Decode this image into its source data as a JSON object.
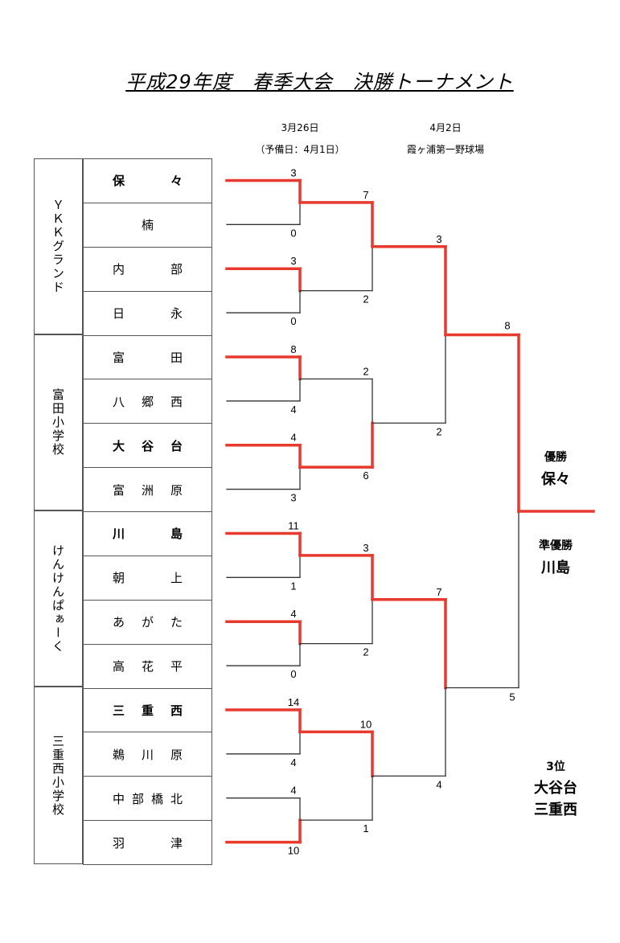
{
  "title": "平成29年度　春季大会　決勝トーナメント",
  "round1_header": {
    "date": "3月26日",
    "note": "（予備日：4月1日）"
  },
  "round2_header": {
    "date": "4月2日",
    "venue": "霞ヶ浦第一野球場"
  },
  "venues": [
    {
      "name": "ＹＫＫグランド"
    },
    {
      "name": "富田小学校"
    },
    {
      "name": "けんけんぱぁーく"
    },
    {
      "name": "三重西小学校"
    }
  ],
  "teams": [
    {
      "chars": [
        "保",
        "々"
      ],
      "bold": true,
      "align": "spread"
    },
    {
      "chars": [
        "楠"
      ],
      "bold": false,
      "align": "center"
    },
    {
      "chars": [
        "内",
        "部"
      ],
      "bold": false,
      "align": "spread"
    },
    {
      "chars": [
        "日",
        "永"
      ],
      "bold": false,
      "align": "spread"
    },
    {
      "chars": [
        "富",
        "田"
      ],
      "bold": false,
      "align": "spread"
    },
    {
      "chars": [
        "八",
        "郷",
        "西"
      ],
      "bold": false,
      "align": "spread"
    },
    {
      "chars": [
        "大",
        "谷",
        "台"
      ],
      "bold": true,
      "align": "spread"
    },
    {
      "chars": [
        "富",
        "洲",
        "原"
      ],
      "bold": false,
      "align": "spread"
    },
    {
      "chars": [
        "川",
        "島"
      ],
      "bold": true,
      "align": "spread"
    },
    {
      "chars": [
        "朝",
        "上"
      ],
      "bold": false,
      "align": "spread"
    },
    {
      "chars": [
        "あ",
        "が",
        "た"
      ],
      "bold": false,
      "align": "spread"
    },
    {
      "chars": [
        "高",
        "花",
        "平"
      ],
      "bold": false,
      "align": "spread"
    },
    {
      "chars": [
        "三",
        "重",
        "西"
      ],
      "bold": true,
      "align": "spread"
    },
    {
      "chars": [
        "鵜",
        "川",
        "原"
      ],
      "bold": false,
      "align": "spread"
    },
    {
      "chars": [
        "中",
        "部",
        "橋",
        "北"
      ],
      "bold": false,
      "align": "spread"
    },
    {
      "chars": [
        "羽",
        "津"
      ],
      "bold": false,
      "align": "spread"
    }
  ],
  "round1": [
    {
      "scores": [
        "3",
        "0"
      ],
      "winner": 0
    },
    {
      "scores": [
        "3",
        "0"
      ],
      "winner": 0
    },
    {
      "scores": [
        "8",
        "4"
      ],
      "winner": 0
    },
    {
      "scores": [
        "4",
        "3"
      ],
      "winner": 0
    },
    {
      "scores": [
        "11",
        "1"
      ],
      "winner": 0
    },
    {
      "scores": [
        "4",
        "0"
      ],
      "winner": 0
    },
    {
      "scores": [
        "14",
        "4"
      ],
      "winner": 0
    },
    {
      "scores": [
        "4",
        "10"
      ],
      "winner": 1
    }
  ],
  "round2": [
    {
      "scores": [
        "7",
        "2"
      ],
      "winner": 0
    },
    {
      "scores": [
        "2",
        "6"
      ],
      "winner": 1
    },
    {
      "scores": [
        "3",
        "2"
      ],
      "winner": 0
    },
    {
      "scores": [
        "10",
        "1"
      ],
      "winner": 0
    }
  ],
  "semifinals": [
    {
      "scores": [
        "3",
        "2"
      ],
      "winner": 0
    },
    {
      "scores": [
        "7",
        "4"
      ],
      "winner": 0
    }
  ],
  "final": {
    "scores": [
      "8",
      "5"
    ],
    "winner": 0
  },
  "colors": {
    "winner_line": "#e8392e",
    "line": "#333333",
    "border": "#555555"
  },
  "results": {
    "champion_label": "優勝",
    "champion": "保々",
    "runner_up_label": "準優勝",
    "runner_up": "川島",
    "third_label": "3位",
    "third_1": "大谷台",
    "third_2": "三重西"
  }
}
